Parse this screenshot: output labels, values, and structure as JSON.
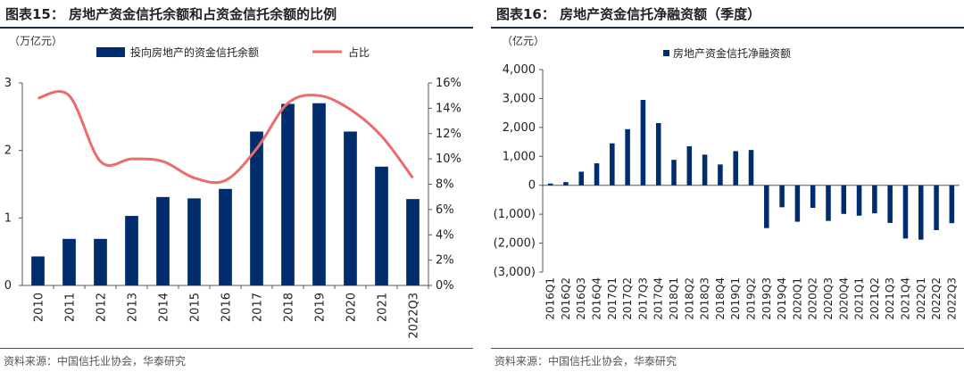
{
  "colors": {
    "bar": "#002d6e",
    "line": "#ec6b6b",
    "title_rule": "#1b2a4a",
    "axis": "#555555"
  },
  "left": {
    "title": "图表15：  房地产资金信托余额和占资金信托余额的比例",
    "unit": "（万亿元）",
    "source": "资料来源：中国信托业协会，华泰研究",
    "chart_data": {
      "type": "bar",
      "categories": [
        "2010",
        "2011",
        "2012",
        "2013",
        "2014",
        "2015",
        "2016",
        "2017",
        "2018",
        "2019",
        "2020",
        "2021",
        "2022Q3"
      ],
      "series": [
        {
          "name": "投向房地产的资金信托余额",
          "type": "bar",
          "axis": "left",
          "values": [
            0.43,
            0.69,
            0.69,
            1.03,
            1.31,
            1.29,
            1.43,
            2.28,
            2.69,
            2.7,
            2.28,
            1.76,
            1.28
          ]
        },
        {
          "name": "占比",
          "type": "line",
          "axis": "right",
          "values": [
            14.8,
            15.0,
            9.8,
            10.0,
            9.8,
            8.5,
            8.3,
            10.8,
            14.4,
            15.0,
            13.9,
            11.8,
            8.5
          ]
        }
      ],
      "ylim": [
        0,
        3
      ],
      "yticks": [
        "0",
        "1",
        "2",
        "3"
      ],
      "y2lim": [
        0,
        16
      ],
      "y2ticks": [
        "0%",
        "2%",
        "4%",
        "6%",
        "8%",
        "10%",
        "12%",
        "14%",
        "16%"
      ],
      "legend": "top"
    }
  },
  "right": {
    "title": "图表16：  房地产资金信托净融资额（季度）",
    "unit": "（亿元）",
    "source": "资料来源：中国信托业协会，华泰研究",
    "chart_data": {
      "type": "bar",
      "categories": [
        "2016Q1",
        "2016Q2",
        "2016Q3",
        "2016Q4",
        "2017Q1",
        "2017Q2",
        "2017Q3",
        "2017Q4",
        "2018Q1",
        "2018Q2",
        "2018Q3",
        "2018Q4",
        "2019Q1",
        "2019Q2",
        "2019Q3",
        "2019Q4",
        "2020Q1",
        "2020Q2",
        "2020Q3",
        "2020Q4",
        "2021Q1",
        "2021Q2",
        "2021Q3",
        "2021Q4",
        "2022Q1",
        "2022Q2",
        "2022Q3"
      ],
      "series": [
        {
          "name": "房地产资金信托净融资额",
          "values": [
            60,
            110,
            470,
            760,
            1450,
            1940,
            2950,
            2150,
            880,
            1350,
            1060,
            720,
            1180,
            1220,
            -1480,
            -760,
            -1260,
            -780,
            -1230,
            -990,
            -1050,
            -970,
            -1300,
            -1840,
            -1880,
            -1550,
            -1310
          ]
        }
      ],
      "ylim": [
        -3000,
        4000
      ],
      "yticks": [
        "4,000",
        "3,000",
        "2,000",
        "1,000",
        "0",
        "(1,000)",
        "(2,000)",
        "(3,000)"
      ],
      "legend": "top"
    }
  }
}
